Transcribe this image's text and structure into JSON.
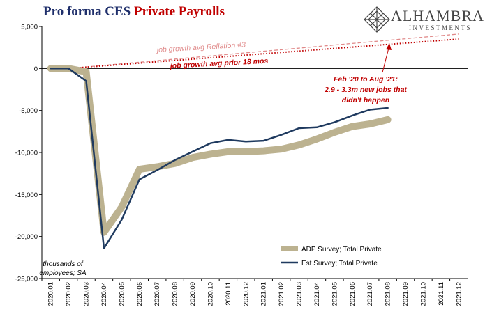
{
  "title": {
    "part1": "Pro forma CES",
    "part2": "Private Payrolls"
  },
  "logo": {
    "name": "ALHAMBRA",
    "sub": "INVESTMENTS",
    "icon": "diamond-lattice-icon"
  },
  "colors": {
    "adp": "#bcb290",
    "est": "#1f3a5f",
    "red": "#c00000",
    "pink": "#e08a8a",
    "title_blue": "#1f2f6b"
  },
  "chart_data": {
    "type": "line",
    "title": "Pro forma CES Private Payrolls",
    "categories": [
      "2020.01",
      "2020.02",
      "2020.03",
      "2020.04",
      "2020.05",
      "2020.06",
      "2020.07",
      "2020.08",
      "2020.09",
      "2020.10",
      "2020.11",
      "2020.12",
      "2021.01",
      "2021.02",
      "2021.03",
      "2021.04",
      "2021.05",
      "2021.06",
      "2021.07",
      "2021.08",
      "2021.09",
      "2021.10",
      "2021.11",
      "2021.12"
    ],
    "ylim": [
      -25000,
      5000
    ],
    "yticks": [
      5000,
      0,
      -5000,
      -10000,
      -15000,
      -20000,
      -25000
    ],
    "ytick_labels": [
      "5,000",
      "0",
      "-5,000",
      "-10,000",
      "-15,000",
      "-20,000",
      "-25,000"
    ],
    "series": [
      {
        "name": "ADP Survey; Total Private",
        "values": [
          0,
          0,
          -400,
          -19500,
          -16500,
          -12000,
          -11700,
          -11300,
          -10600,
          -10200,
          -9900,
          -9900,
          -9800,
          -9600,
          -9100,
          -8400,
          -7600,
          -6900,
          -6600,
          -6100,
          null,
          null,
          null,
          null
        ]
      },
      {
        "name": "Est Survey; Total Private",
        "values": [
          0,
          0,
          -1500,
          -21400,
          -18000,
          -13200,
          -12100,
          -10900,
          -9900,
          -8900,
          -8500,
          -8700,
          -8600,
          -7900,
          -7100,
          -7000,
          -6400,
          -5600,
          -4900,
          -4700,
          null,
          null,
          null,
          null
        ]
      },
      {
        "name": "job growth avg Reflation #3",
        "style": "dashed",
        "start": [
          1,
          0
        ],
        "end": [
          23,
          4100
        ]
      },
      {
        "name": "job growth avg prior 18 mos",
        "style": "dotted",
        "start": [
          1,
          0
        ],
        "end": [
          23,
          3500
        ]
      }
    ],
    "annotations": {
      "reflation": "job growth avg Reflation #3",
      "prior": "job growth avg prior 18 mos",
      "feb_line1": "Feb '20 to Aug '21:",
      "feb_line2": "2.9 - 3.3m new jobs that",
      "feb_line3": "didn't happen",
      "units_line1": "thousands of",
      "units_line2": "employees; SA"
    },
    "legend": [
      "ADP Survey; Total Private",
      "Est Survey; Total Private"
    ],
    "legend_position": "bottom-right"
  }
}
